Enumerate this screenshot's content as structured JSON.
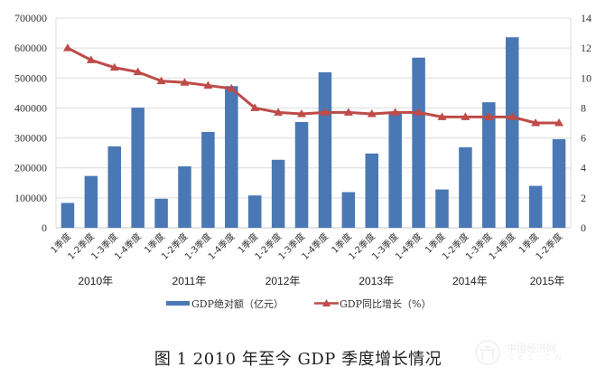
{
  "chart_data": {
    "type": "bar",
    "title": "",
    "categories": [
      "1季度",
      "1-2季度",
      "1-3季度",
      "1-4季度",
      "1季度",
      "1-2季度",
      "1-3季度",
      "1-4季度",
      "1季度",
      "1-2季度",
      "1-3季度",
      "1-4季度",
      "1季度",
      "1-2季度",
      "1-3季度",
      "1-4季度",
      "1季度",
      "1-2季度",
      "1-3季度",
      "1-4季度",
      "1季度",
      "1-2季度"
    ],
    "year_groups": [
      {
        "label": "2010年",
        "span": 4
      },
      {
        "label": "2011年",
        "span": 4
      },
      {
        "label": "2012年",
        "span": 4
      },
      {
        "label": "2013年",
        "span": 4
      },
      {
        "label": "2014年",
        "span": 4
      },
      {
        "label": "2015年",
        "span": 2
      }
    ],
    "series": [
      {
        "name": "GDP绝对额（亿元）",
        "type": "bar",
        "axis": "left",
        "color": "#4a78b4",
        "values": [
          83000,
          173000,
          272000,
          401000,
          97000,
          205000,
          320000,
          473000,
          108000,
          227000,
          353000,
          519000,
          119000,
          248000,
          386000,
          568000,
          128000,
          269000,
          419000,
          636000,
          140000,
          296000
        ]
      },
      {
        "name": "GDP同比增长（%）",
        "type": "line",
        "axis": "right",
        "color": "#be4b48",
        "marker": "triangle",
        "values": [
          12.0,
          11.2,
          10.7,
          10.4,
          9.8,
          9.7,
          9.5,
          9.3,
          8.0,
          7.7,
          7.6,
          7.7,
          7.7,
          7.6,
          7.7,
          7.7,
          7.4,
          7.4,
          7.4,
          7.4,
          7.0,
          7.0
        ]
      }
    ],
    "y_left": {
      "min": 0,
      "max": 700000,
      "ticks": [
        "0",
        "100000",
        "200000",
        "300000",
        "400000",
        "500000",
        "600000",
        "700000"
      ]
    },
    "y_right": {
      "min": 0,
      "max": 14,
      "ticks": [
        "0",
        "2",
        "4",
        "6",
        "8",
        "10",
        "12",
        "14"
      ]
    },
    "grid": true,
    "legend_position": "bottom"
  },
  "caption": "图 1  2010 年至今 GDP 季度增长情况",
  "watermark": {
    "line1": "中国经济网",
    "line2": "CES.CN"
  }
}
